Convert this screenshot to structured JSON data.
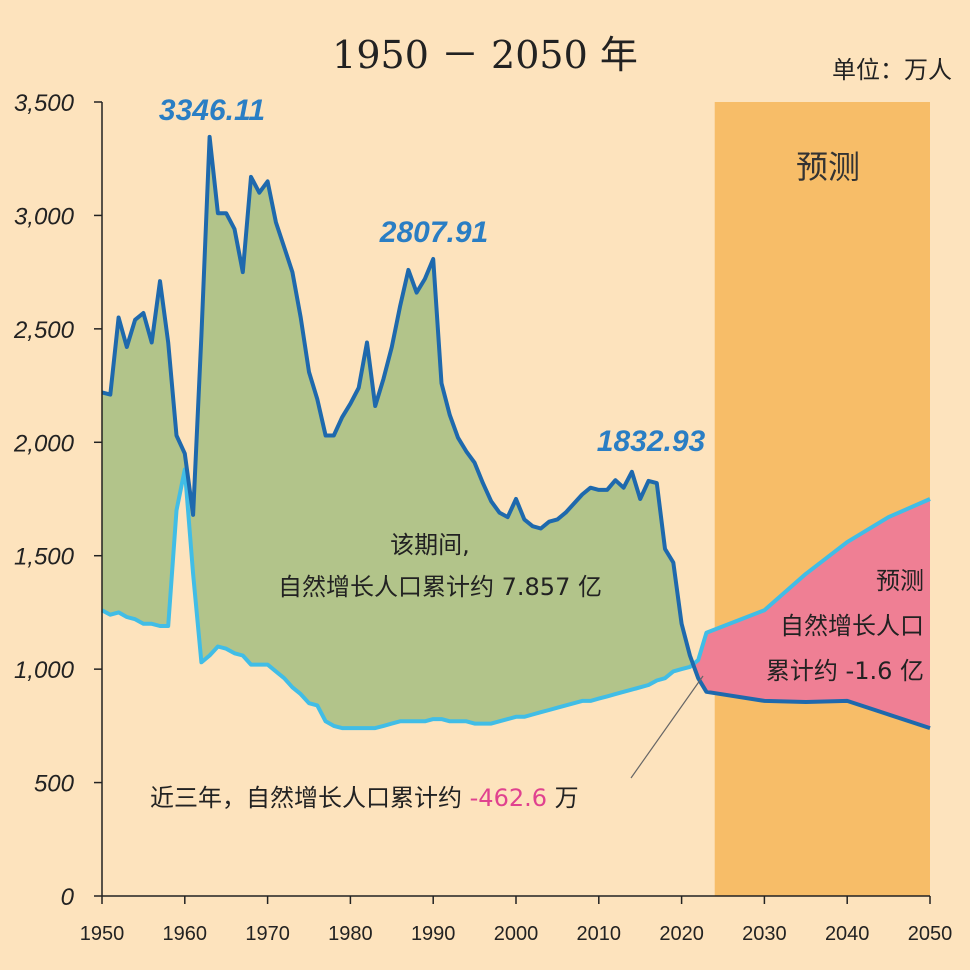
{
  "header": {
    "title": "1950 － 2050 年",
    "unit": "单位：万人"
  },
  "colors": {
    "background": "#fde3bd",
    "births_line": "#1e69ad",
    "deaths_line": "#41bde6",
    "growth_fill_early": "#b2c48a",
    "growth_fill": "#bfd6ac",
    "negative_fill": "#ef7f94",
    "forecast_band": "#f7bd68",
    "highlight_text": "#e0428f"
  },
  "chart_data": {
    "type": "area",
    "xlim": [
      1950,
      2050
    ],
    "ylim": [
      0,
      3500
    ],
    "x_ticks": [
      1950,
      1960,
      1970,
      1980,
      1990,
      2000,
      2010,
      2020,
      2030,
      2040,
      2050
    ],
    "y_ticks": [
      0,
      500,
      1000,
      1500,
      2000,
      2500,
      3000,
      3500
    ],
    "y_tick_labels": [
      "0",
      "500",
      "1,000",
      "1,500",
      "2,000",
      "2,500",
      "3,000",
      "3,500"
    ],
    "forecast_range": [
      2024,
      2050
    ],
    "forecast_label": "预测",
    "series": [
      {
        "key": "births",
        "x": [
          1950,
          1951,
          1952,
          1953,
          1954,
          1955,
          1956,
          1957,
          1958,
          1959,
          1960,
          1961,
          1962,
          1963,
          1964,
          1965,
          1966,
          1967,
          1968,
          1969,
          1970,
          1971,
          1972,
          1973,
          1974,
          1975,
          1976,
          1977,
          1978,
          1979,
          1980,
          1981,
          1982,
          1983,
          1984,
          1985,
          1986,
          1987,
          1988,
          1989,
          1990,
          1991,
          1992,
          1993,
          1994,
          1995,
          1996,
          1997,
          1998,
          1999,
          2000,
          2001,
          2002,
          2003,
          2004,
          2005,
          2006,
          2007,
          2008,
          2009,
          2010,
          2011,
          2012,
          2013,
          2014,
          2015,
          2016,
          2017,
          2018,
          2019,
          2020,
          2021,
          2022,
          2023,
          2030,
          2035,
          2040,
          2045,
          2050
        ],
        "values": [
          2220,
          2210,
          2550,
          2420,
          2540,
          2570,
          2440,
          2710,
          2440,
          2030,
          1950,
          1680,
          2470,
          3346.11,
          3010,
          3010,
          2940,
          2750,
          3170,
          3100,
          3150,
          2970,
          2860,
          2750,
          2550,
          2310,
          2190,
          2030,
          2030,
          2110,
          2170,
          2240,
          2440,
          2160,
          2280,
          2420,
          2600,
          2760,
          2660,
          2720,
          2807.91,
          2260,
          2120,
          2020,
          1960,
          1910,
          1820,
          1740,
          1690,
          1670,
          1750,
          1660,
          1630,
          1620,
          1650,
          1660,
          1690,
          1730,
          1770,
          1800,
          1790,
          1790,
          1832.93,
          1800,
          1870,
          1750,
          1830,
          1820,
          1530,
          1470,
          1200,
          1060,
          960,
          900,
          860,
          855,
          860,
          800,
          740
        ]
      },
      {
        "key": "deaths",
        "x": [
          1950,
          1951,
          1952,
          1953,
          1954,
          1955,
          1956,
          1957,
          1958,
          1959,
          1960,
          1961,
          1962,
          1963,
          1964,
          1965,
          1966,
          1967,
          1968,
          1969,
          1970,
          1971,
          1972,
          1973,
          1974,
          1975,
          1976,
          1977,
          1978,
          1979,
          1980,
          1981,
          1982,
          1983,
          1984,
          1985,
          1986,
          1987,
          1988,
          1989,
          1990,
          1991,
          1992,
          1993,
          1994,
          1995,
          1996,
          1997,
          1998,
          1999,
          2000,
          2001,
          2002,
          2003,
          2004,
          2005,
          2006,
          2007,
          2008,
          2009,
          2010,
          2011,
          2012,
          2013,
          2014,
          2015,
          2016,
          2017,
          2018,
          2019,
          2020,
          2021,
          2022,
          2023,
          2030,
          2035,
          2040,
          2045,
          2050
        ],
        "values": [
          1260,
          1240,
          1250,
          1230,
          1220,
          1200,
          1200,
          1190,
          1190,
          1700,
          1880,
          1420,
          1030,
          1060,
          1100,
          1090,
          1070,
          1060,
          1020,
          1020,
          1020,
          990,
          960,
          920,
          890,
          850,
          840,
          770,
          750,
          740,
          740,
          740,
          740,
          740,
          750,
          760,
          770,
          770,
          770,
          770,
          780,
          780,
          770,
          770,
          770,
          760,
          760,
          760,
          770,
          780,
          790,
          790,
          800,
          810,
          820,
          830,
          840,
          850,
          860,
          860,
          870,
          880,
          890,
          900,
          910,
          920,
          930,
          950,
          960,
          990,
          1000,
          1010,
          1040,
          1160,
          1260,
          1420,
          1560,
          1670,
          1750
        ]
      }
    ],
    "annotations": {
      "peaks": [
        "3346.11",
        "2807.91",
        "1832.93"
      ],
      "period_note_line1": "该期间,",
      "period_note_line2": "自然增长人口累计约 7.857 亿",
      "forecast_note_line1": "预测",
      "forecast_note_line2": "自然增长人口",
      "forecast_note_line3": "累计约 -1.6 亿",
      "recent_note_prefix": "近三年，自然增长人口累计约 ",
      "recent_note_value": "-462.6",
      "recent_note_suffix": " 万"
    }
  }
}
